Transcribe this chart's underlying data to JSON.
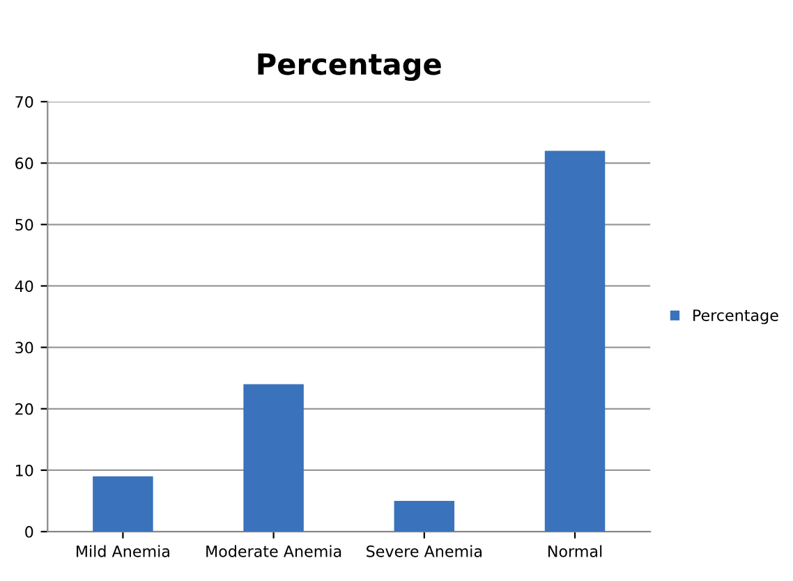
{
  "chart_data": {
    "type": "bar",
    "title": "Percentage",
    "categories": [
      "Mild Anemia",
      "Moderate Anemia",
      "Severe Anemia",
      "Normal"
    ],
    "series": [
      {
        "name": "Percentage",
        "color": "#3a72bb",
        "values": [
          9,
          24,
          5,
          62
        ]
      }
    ],
    "ylim": [
      0,
      70
    ],
    "yticks": [
      0,
      10,
      20,
      30,
      40,
      50,
      60,
      70
    ],
    "grid": "y",
    "legend": "right"
  }
}
